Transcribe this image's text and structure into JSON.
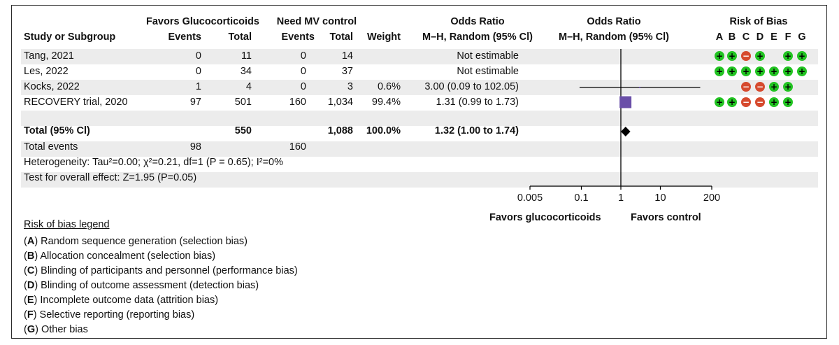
{
  "header": {
    "group1": "Favors Glucocorticoids",
    "group2": "Need MV control",
    "or_text_header": "Odds Ratio",
    "or_text_sub": "M–H, Random (95% Cl)",
    "or_plot_header": "Odds Ratio",
    "or_plot_sub": "M–H, Random (95% Cl)",
    "rob_header": "Risk of Bias",
    "study_col": "Study or Subgroup",
    "events1": "Events",
    "total1": "Total",
    "events2": "Events",
    "total2": "Total",
    "weight": "Weight",
    "rob_letters": [
      "A",
      "B",
      "C",
      "D",
      "E",
      "F",
      "G"
    ]
  },
  "studies": [
    {
      "name": "Tang, 2021",
      "events1": "0",
      "total1": "11",
      "events2": "0",
      "total2": "14",
      "weight": "",
      "or_text": "Not estimable",
      "rob": [
        "+",
        "+",
        "−",
        "+",
        "",
        "+",
        "+"
      ]
    },
    {
      "name": "Les, 2022",
      "events1": "0",
      "total1": "34",
      "events2": "0",
      "total2": "37",
      "weight": "",
      "or_text": "Not estimable",
      "rob": [
        "+",
        "+",
        "+",
        "+",
        "+",
        "+",
        "+"
      ]
    },
    {
      "name": "Kocks, 2022",
      "events1": "1",
      "total1": "4",
      "events2": "0",
      "total2": "3",
      "weight": "0.6%",
      "or_text": "3.00 (0.09 to 102.05)",
      "rob": [
        "",
        "",
        "−",
        "−",
        "+",
        "+",
        ""
      ]
    },
    {
      "name": "RECOVERY trial, 2020",
      "events1": "97",
      "total1": "501",
      "events2": "160",
      "total2": "1,034",
      "weight": "99.4%",
      "or_text": "1.31 (0.99 to 1.73)",
      "rob": [
        "+",
        "+",
        "−",
        "−",
        "+",
        "+",
        ""
      ]
    }
  ],
  "total": {
    "label": "Total (95% Cl)",
    "total1": "550",
    "total2": "1,088",
    "weight": "100.0%",
    "or_text": "1.32 (1.00 to 1.74)"
  },
  "total_events": {
    "label": "Total events",
    "events1": "98",
    "events2": "160"
  },
  "heterogeneity": "Heterogeneity: Tau²=0.00; χ²=0.21, df=1 (P = 0.65); I²=0%",
  "overall_effect": "Test for overall effect: Z=1.95 (P=0.05)",
  "axis": {
    "ticks": [
      "0.005",
      "0.1",
      "1",
      "10",
      "200"
    ],
    "favors_left": "Favors glucocorticoids",
    "favors_right": "Favors control"
  },
  "legend": {
    "title": "Risk of bias legend",
    "items": [
      {
        "key": "A",
        "text": ") Random sequence generation (selection bias)"
      },
      {
        "key": "B",
        "text": ") Allocation concealment (selection bias)"
      },
      {
        "key": "C",
        "text": ") Blinding of participants and personnel (performance bias)"
      },
      {
        "key": "D",
        "text": ") Blinding of outcome assessment (detection bias)"
      },
      {
        "key": "E",
        "text": ") Incomplete outcome data (attrition bias)"
      },
      {
        "key": "F",
        "text": ") Selective reporting (reporting bias)"
      },
      {
        "key": "G",
        "text": ") Other bias"
      }
    ]
  },
  "colors": {
    "low_risk": "#22c322",
    "high_risk": "#d64a2e",
    "study_marker": "#6a4fa8",
    "diamond": "#000000"
  },
  "chart_data": {
    "type": "forest",
    "x_scale": "log",
    "xlim": [
      0.005,
      200
    ],
    "x_ticks": [
      0.005,
      0.1,
      1,
      10,
      200
    ],
    "points": [
      {
        "study": "Kocks, 2022",
        "or": 3.0,
        "ci": [
          0.09,
          102.05
        ],
        "weight": 0.6
      },
      {
        "study": "RECOVERY trial, 2020",
        "or": 1.31,
        "ci": [
          0.99,
          1.73
        ],
        "weight": 99.4
      }
    ],
    "pooled": {
      "or": 1.32,
      "ci": [
        1.0,
        1.74
      ]
    }
  }
}
